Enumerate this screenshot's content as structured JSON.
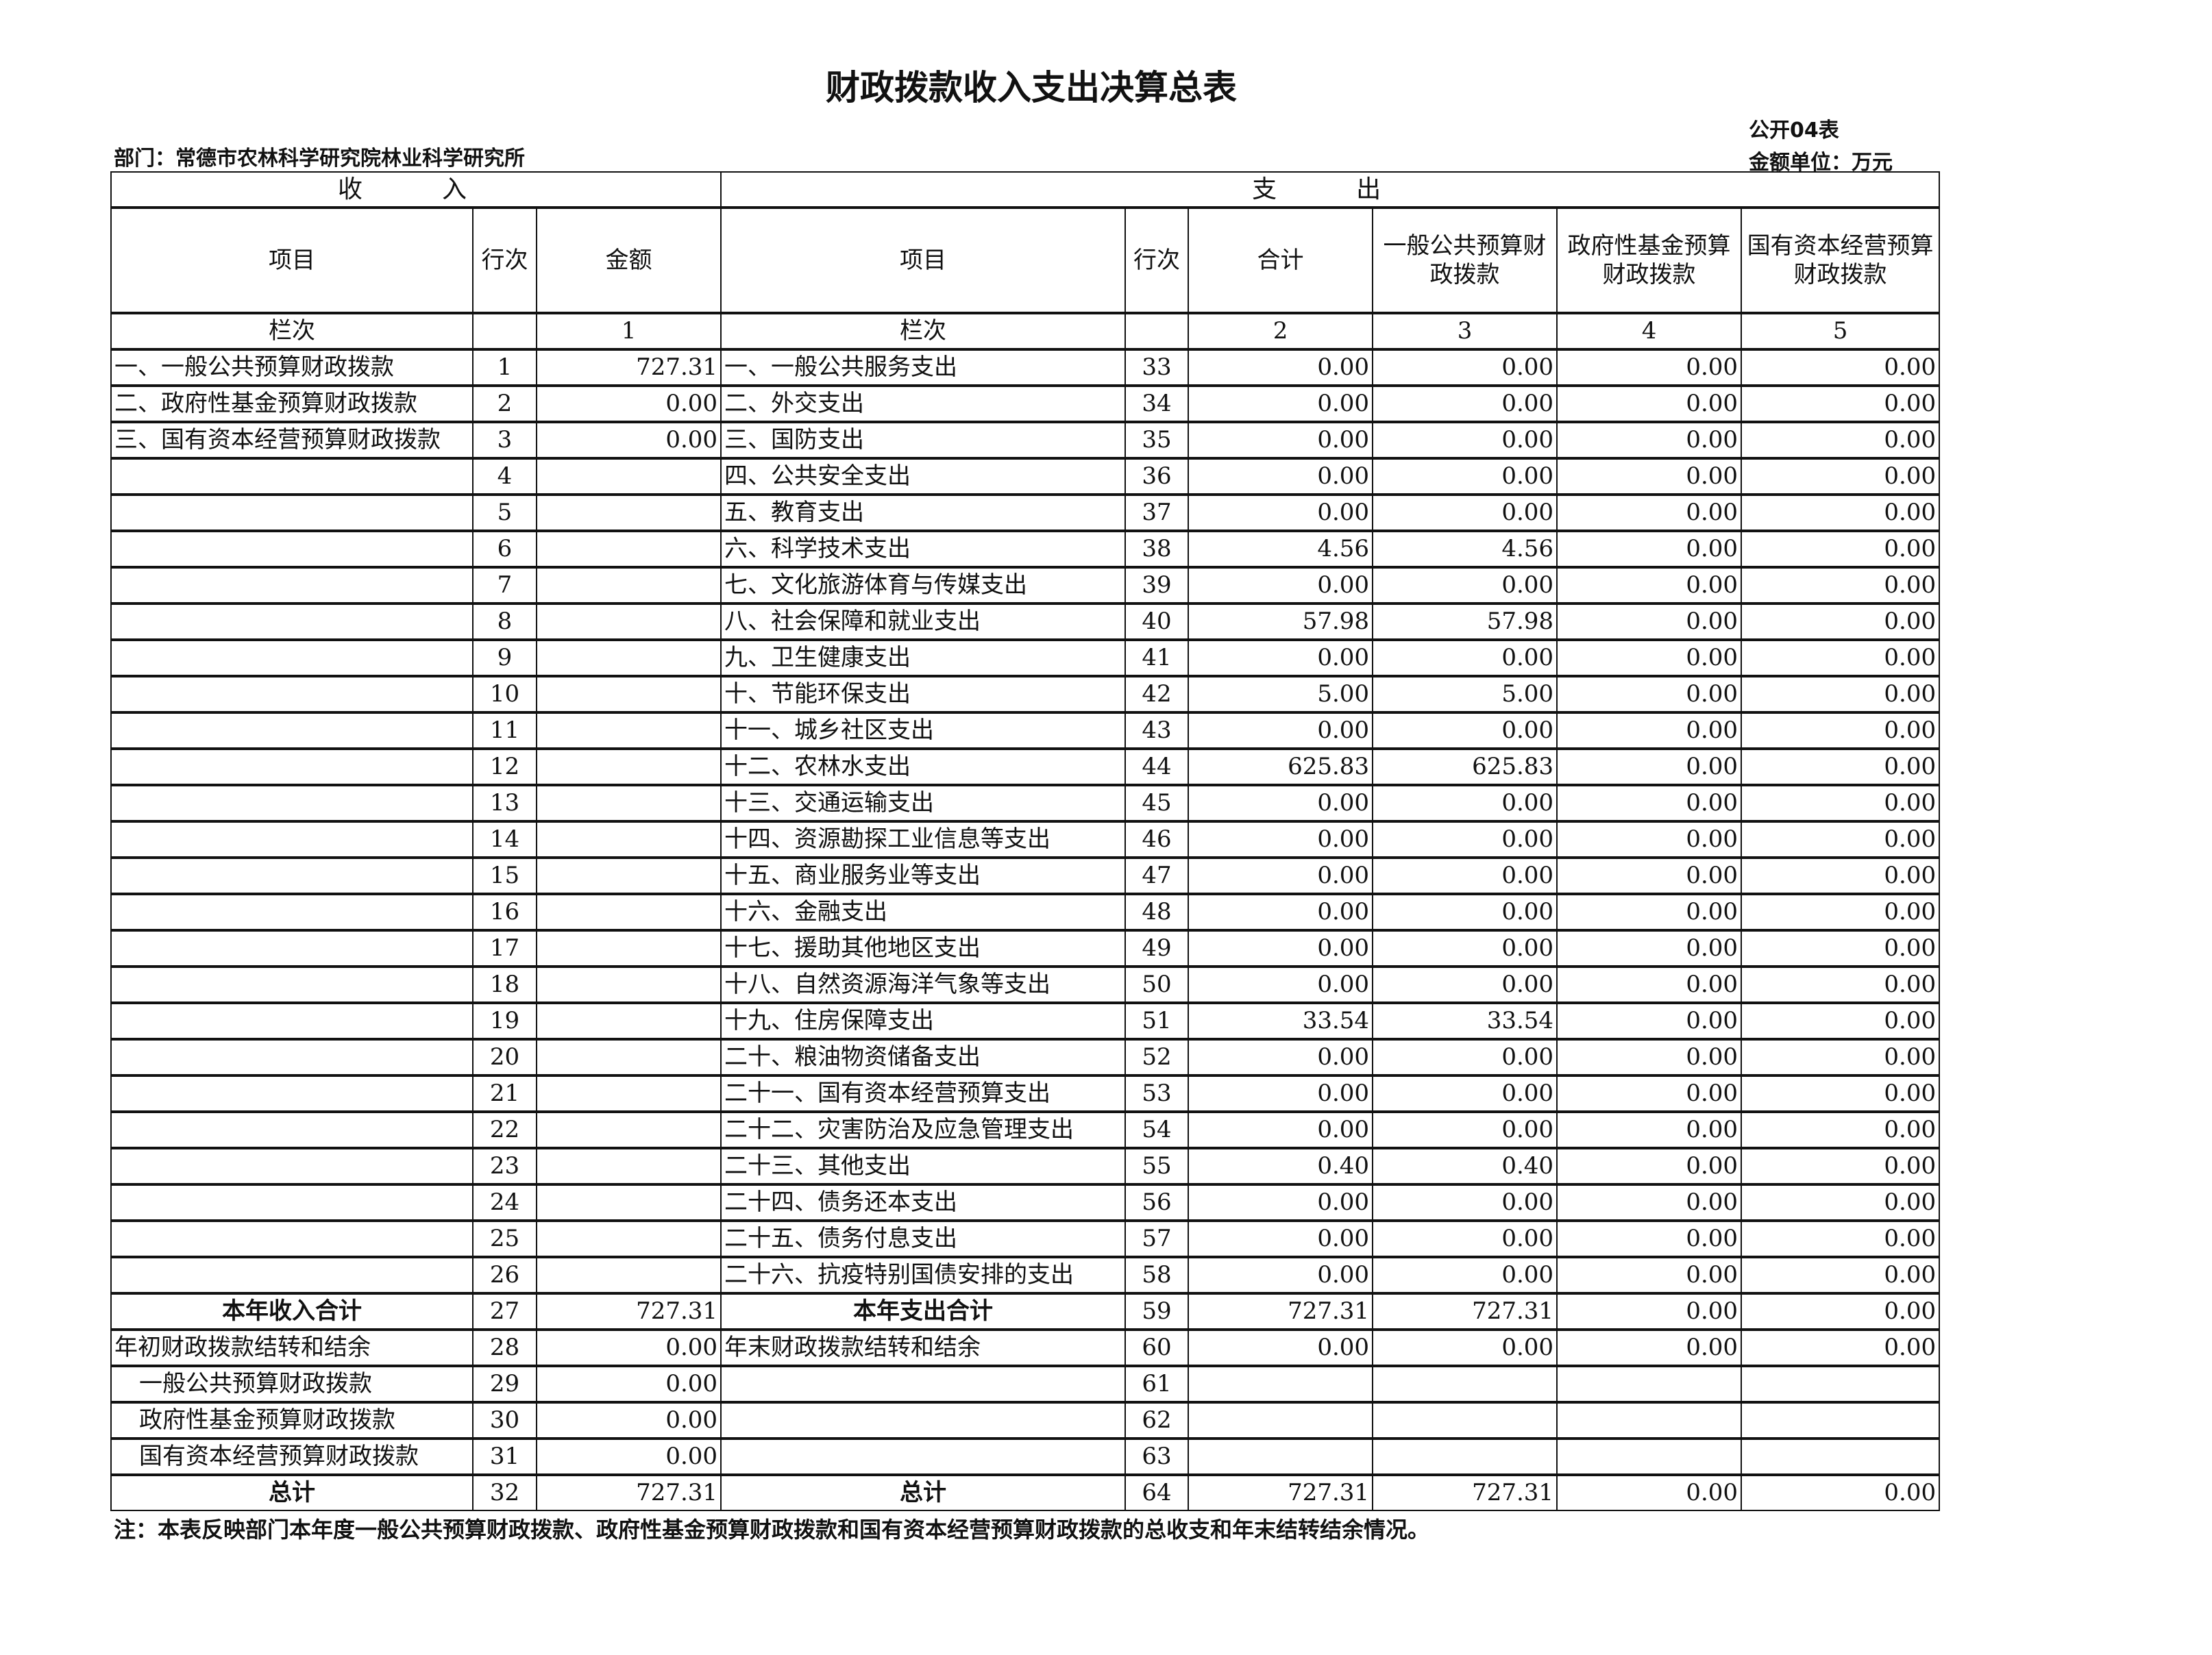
{
  "title": "财政拨款收入支出决算总表",
  "form_no": "公开04表",
  "unit": "金额单位：万元",
  "department": "部门：常德市农林科学研究院林业科学研究所",
  "header": {
    "income": "收　入",
    "expense": "支　出",
    "columns": [
      "项目",
      "行次",
      "金额",
      "项目",
      "行次",
      "合计",
      "一般公共预算财政拨款",
      "政府性基金预算财政拨款",
      "国有资本经营预算财政拨款"
    ],
    "lanci": [
      "栏次",
      "",
      "1",
      "栏次",
      "",
      "2",
      "3",
      "4",
      "5"
    ]
  },
  "rows": [
    [
      "一、一般公共预算财政拨款",
      "1",
      "727.31",
      "一、一般公共服务支出",
      "33",
      "0.00",
      "0.00",
      "0.00",
      "0.00"
    ],
    [
      "二、政府性基金预算财政拨款",
      "2",
      "0.00",
      "二、外交支出",
      "34",
      "0.00",
      "0.00",
      "0.00",
      "0.00"
    ],
    [
      "三、国有资本经营预算财政拨款",
      "3",
      "0.00",
      "三、国防支出",
      "35",
      "0.00",
      "0.00",
      "0.00",
      "0.00"
    ],
    [
      "",
      "4",
      "",
      "四、公共安全支出",
      "36",
      "0.00",
      "0.00",
      "0.00",
      "0.00"
    ],
    [
      "",
      "5",
      "",
      "五、教育支出",
      "37",
      "0.00",
      "0.00",
      "0.00",
      "0.00"
    ],
    [
      "",
      "6",
      "",
      "六、科学技术支出",
      "38",
      "4.56",
      "4.56",
      "0.00",
      "0.00"
    ],
    [
      "",
      "7",
      "",
      "七、文化旅游体育与传媒支出",
      "39",
      "0.00",
      "0.00",
      "0.00",
      "0.00"
    ],
    [
      "",
      "8",
      "",
      "八、社会保障和就业支出",
      "40",
      "57.98",
      "57.98",
      "0.00",
      "0.00"
    ],
    [
      "",
      "9",
      "",
      "九、卫生健康支出",
      "41",
      "0.00",
      "0.00",
      "0.00",
      "0.00"
    ],
    [
      "",
      "10",
      "",
      "十、节能环保支出",
      "42",
      "5.00",
      "5.00",
      "0.00",
      "0.00"
    ],
    [
      "",
      "11",
      "",
      "十一、城乡社区支出",
      "43",
      "0.00",
      "0.00",
      "0.00",
      "0.00"
    ],
    [
      "",
      "12",
      "",
      "十二、农林水支出",
      "44",
      "625.83",
      "625.83",
      "0.00",
      "0.00"
    ],
    [
      "",
      "13",
      "",
      "十三、交通运输支出",
      "45",
      "0.00",
      "0.00",
      "0.00",
      "0.00"
    ],
    [
      "",
      "14",
      "",
      "十四、资源勘探工业信息等支出",
      "46",
      "0.00",
      "0.00",
      "0.00",
      "0.00"
    ],
    [
      "",
      "15",
      "",
      "十五、商业服务业等支出",
      "47",
      "0.00",
      "0.00",
      "0.00",
      "0.00"
    ],
    [
      "",
      "16",
      "",
      "十六、金融支出",
      "48",
      "0.00",
      "0.00",
      "0.00",
      "0.00"
    ],
    [
      "",
      "17",
      "",
      "十七、援助其他地区支出",
      "49",
      "0.00",
      "0.00",
      "0.00",
      "0.00"
    ],
    [
      "",
      "18",
      "",
      "十八、自然资源海洋气象等支出",
      "50",
      "0.00",
      "0.00",
      "0.00",
      "0.00"
    ],
    [
      "",
      "19",
      "",
      "十九、住房保障支出",
      "51",
      "33.54",
      "33.54",
      "0.00",
      "0.00"
    ],
    [
      "",
      "20",
      "",
      "二十、粮油物资储备支出",
      "52",
      "0.00",
      "0.00",
      "0.00",
      "0.00"
    ],
    [
      "",
      "21",
      "",
      "二十一、国有资本经营预算支出",
      "53",
      "0.00",
      "0.00",
      "0.00",
      "0.00"
    ],
    [
      "",
      "22",
      "",
      "二十二、灾害防治及应急管理支出",
      "54",
      "0.00",
      "0.00",
      "0.00",
      "0.00"
    ],
    [
      "",
      "23",
      "",
      "二十三、其他支出",
      "55",
      "0.40",
      "0.40",
      "0.00",
      "0.00"
    ],
    [
      "",
      "24",
      "",
      "二十四、债务还本支出",
      "56",
      "0.00",
      "0.00",
      "0.00",
      "0.00"
    ],
    [
      "",
      "25",
      "",
      "二十五、债务付息支出",
      "57",
      "0.00",
      "0.00",
      "0.00",
      "0.00"
    ],
    [
      "",
      "26",
      "",
      "二十六、抗疫特别国债安排的支出",
      "58",
      "0.00",
      "0.00",
      "0.00",
      "0.00"
    ],
    [
      "本年收入合计",
      "27",
      "727.31",
      "本年支出合计",
      "59",
      "727.31",
      "727.31",
      "0.00",
      "0.00"
    ],
    [
      "年初财政拨款结转和结余",
      "28",
      "0.00",
      "年末财政拨款结转和结余",
      "60",
      "0.00",
      "0.00",
      "0.00",
      "0.00"
    ],
    [
      "一般公共预算财政拨款",
      "29",
      "0.00",
      "",
      "61",
      "",
      "",
      "",
      ""
    ],
    [
      "政府性基金预算财政拨款",
      "30",
      "0.00",
      "",
      "62",
      "",
      "",
      "",
      ""
    ],
    [
      "国有资本经营预算财政拨款",
      "31",
      "0.00",
      "",
      "63",
      "",
      "",
      "",
      ""
    ],
    [
      "总计",
      "32",
      "727.31",
      "总计",
      "64",
      "727.31",
      "727.31",
      "0.00",
      "0.00"
    ]
  ],
  "note": "注：本表反映部门本年度一般公共预算财政拨款、政府性基金预算财政拨款和国有资本经营预算财政拨款的总收支和年末结转结余情况。"
}
